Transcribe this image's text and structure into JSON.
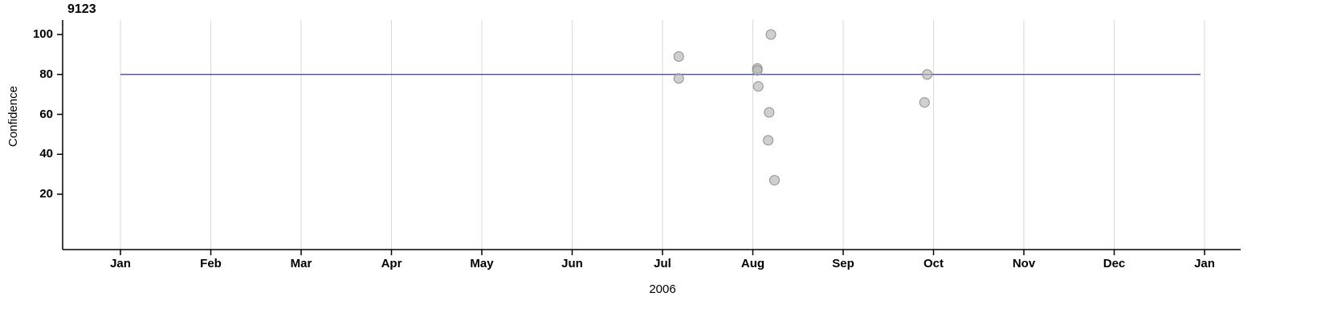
{
  "chart_data": {
    "type": "scatter",
    "title": "9123",
    "xlabel": "2006",
    "ylabel": "Confidence",
    "x_tick_labels": [
      "Jan",
      "Feb",
      "Mar",
      "Apr",
      "May",
      "Jun",
      "Jul",
      "Aug",
      "Sep",
      "Oct",
      "Nov",
      "Dec",
      "Jan"
    ],
    "y_ticks": [
      20,
      40,
      60,
      80,
      100
    ],
    "ylim": [
      -8,
      107
    ],
    "x_range_months": [
      0,
      12
    ],
    "grid": "vertical-only",
    "grid_color": "#d9d9d9",
    "point_color": "#b5b5b5",
    "point_stroke_color": "#8f8f8f",
    "reference_line": {
      "y": 80,
      "color": "#3b3b82"
    },
    "points": [
      {
        "month": 6.18,
        "value": 89
      },
      {
        "month": 6.18,
        "value": 78
      },
      {
        "month": 7.05,
        "value": 83
      },
      {
        "month": 7.05,
        "value": 82
      },
      {
        "month": 7.06,
        "value": 74
      },
      {
        "month": 7.2,
        "value": 100
      },
      {
        "month": 7.18,
        "value": 61
      },
      {
        "month": 7.17,
        "value": 47
      },
      {
        "month": 7.24,
        "value": 27
      },
      {
        "month": 8.93,
        "value": 80
      },
      {
        "month": 8.9,
        "value": 66
      }
    ]
  }
}
